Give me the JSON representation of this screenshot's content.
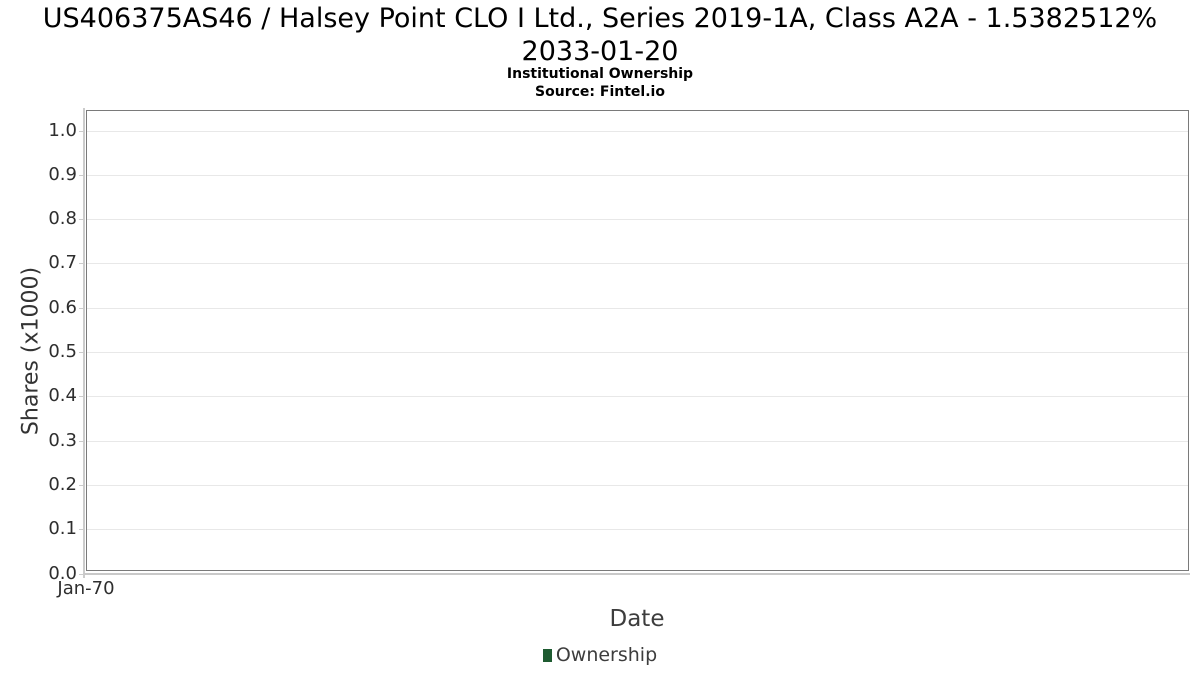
{
  "header": {
    "title_line1": "US406375AS46 / Halsey Point CLO I Ltd., Series 2019-1A, Class A2A - 1.5382512%",
    "title_line2": "2033-01-20",
    "subtitle": "Institutional Ownership",
    "source": "Source: Fintel.io"
  },
  "axes": {
    "y_label": "Shares (x1000)",
    "x_label": "Date",
    "x_tick": "Jan-70"
  },
  "legend": {
    "items": [
      {
        "label": "Ownership",
        "color": "#1e5b31"
      }
    ]
  },
  "chart_data": {
    "type": "bar",
    "title": "US406375AS46 / Halsey Point CLO I Ltd., Series 2019-1A, Class A2A - 1.5382512% 2033-01-20",
    "subtitle": "Institutional Ownership",
    "source": "Source: Fintel.io",
    "xlabel": "Date",
    "ylabel": "Shares (x1000)",
    "x_ticks": [
      "Jan-70"
    ],
    "y_ticks": [
      "1.0",
      "0.9",
      "0.8",
      "0.7",
      "0.6",
      "0.5",
      "0.4",
      "0.3",
      "0.2",
      "0.1",
      "0.0"
    ],
    "ylim": [
      0.0,
      1.0
    ],
    "grid": true,
    "legend_position": "bottom",
    "series": [
      {
        "name": "Ownership",
        "color": "#1e5b31",
        "values": []
      }
    ]
  },
  "colors": {
    "plot_border": "#7a7a7a",
    "gridline": "#e8e8e8",
    "axis_line": "#cccccc",
    "title_text": "#000000",
    "tick_text": "#2e2e2e",
    "label_text": "#3d3d3d",
    "legend_marker": "#1e5b31"
  }
}
